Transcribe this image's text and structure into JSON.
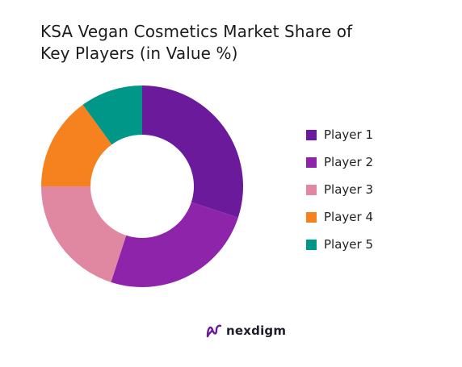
{
  "title": {
    "line1": "KSA Vegan Cosmetics Market Share of",
    "line2": "Key Players (in Value %)"
  },
  "chart_data": {
    "type": "pie",
    "title": "KSA Vegan Cosmetics Market Share of Key Players (in Value %)",
    "donut": true,
    "start": "top (12 o'clock)",
    "direction": "clockwise",
    "categories": [
      "Player 1",
      "Player 2",
      "Player 3",
      "Player 4",
      "Player 5"
    ],
    "values": [
      30,
      25,
      20,
      15,
      10
    ],
    "colors": [
      "#6a1a9a",
      "#8e24aa",
      "#e088a2",
      "#f5821f",
      "#009688"
    ],
    "legend": "right"
  },
  "brand": {
    "name": "nexdigm",
    "color": "#6a1a9a"
  }
}
